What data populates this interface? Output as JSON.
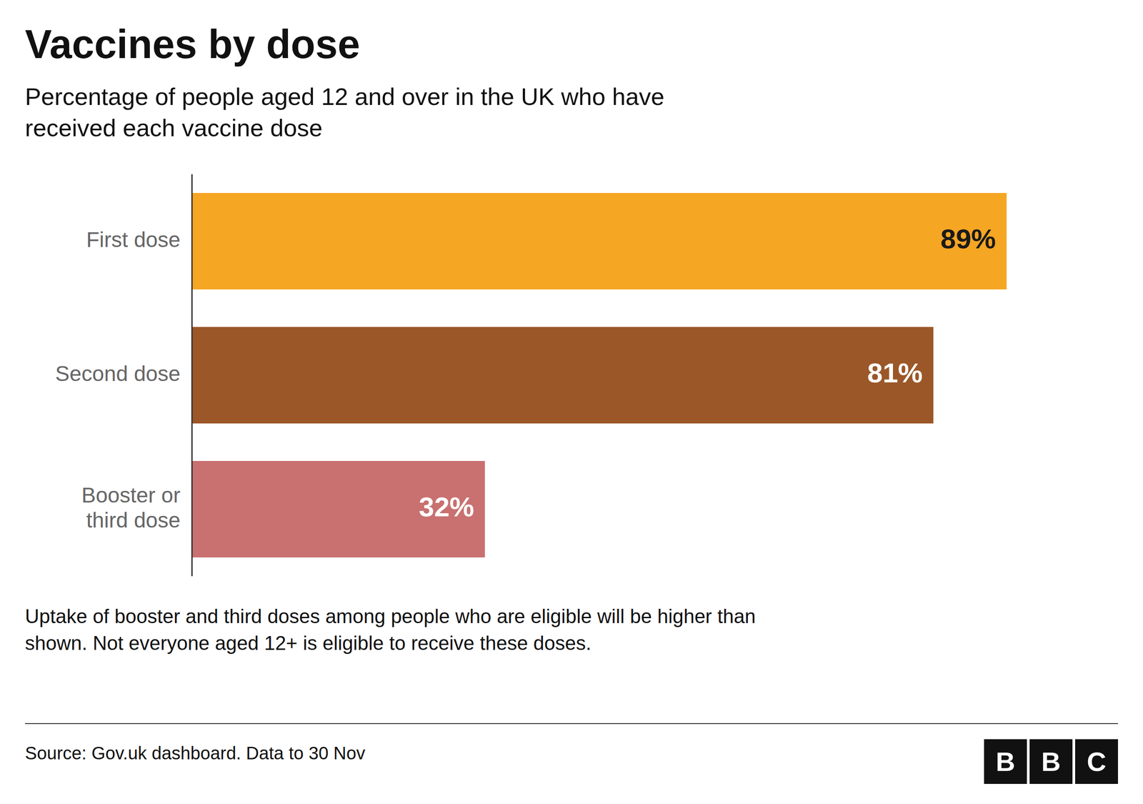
{
  "chart_data": {
    "type": "bar",
    "orientation": "horizontal",
    "title": "Vaccines by dose",
    "subtitle": "Percentage of people aged 12 and over in the UK who have\nreceived each vaccine dose",
    "categories": [
      "First dose",
      "Second dose",
      "Booster or\nthird dose"
    ],
    "values": [
      89,
      81,
      32
    ],
    "value_labels": [
      "89%",
      "81%",
      "32%"
    ],
    "colors": [
      "#F5A623",
      "#9B5728",
      "#C97070"
    ],
    "data_labels": true,
    "xlim": [
      0,
      100
    ],
    "tick_labels": "y",
    "footnote": "Uptake of booster and third doses among people who are eligible will be higher than\nshown. Not everyone aged 12+ is eligible to receive these doses.",
    "source": "Source: Gov.uk dashboard. Data to 30 Nov",
    "annotations": [
      "B",
      "B",
      "C"
    ]
  }
}
